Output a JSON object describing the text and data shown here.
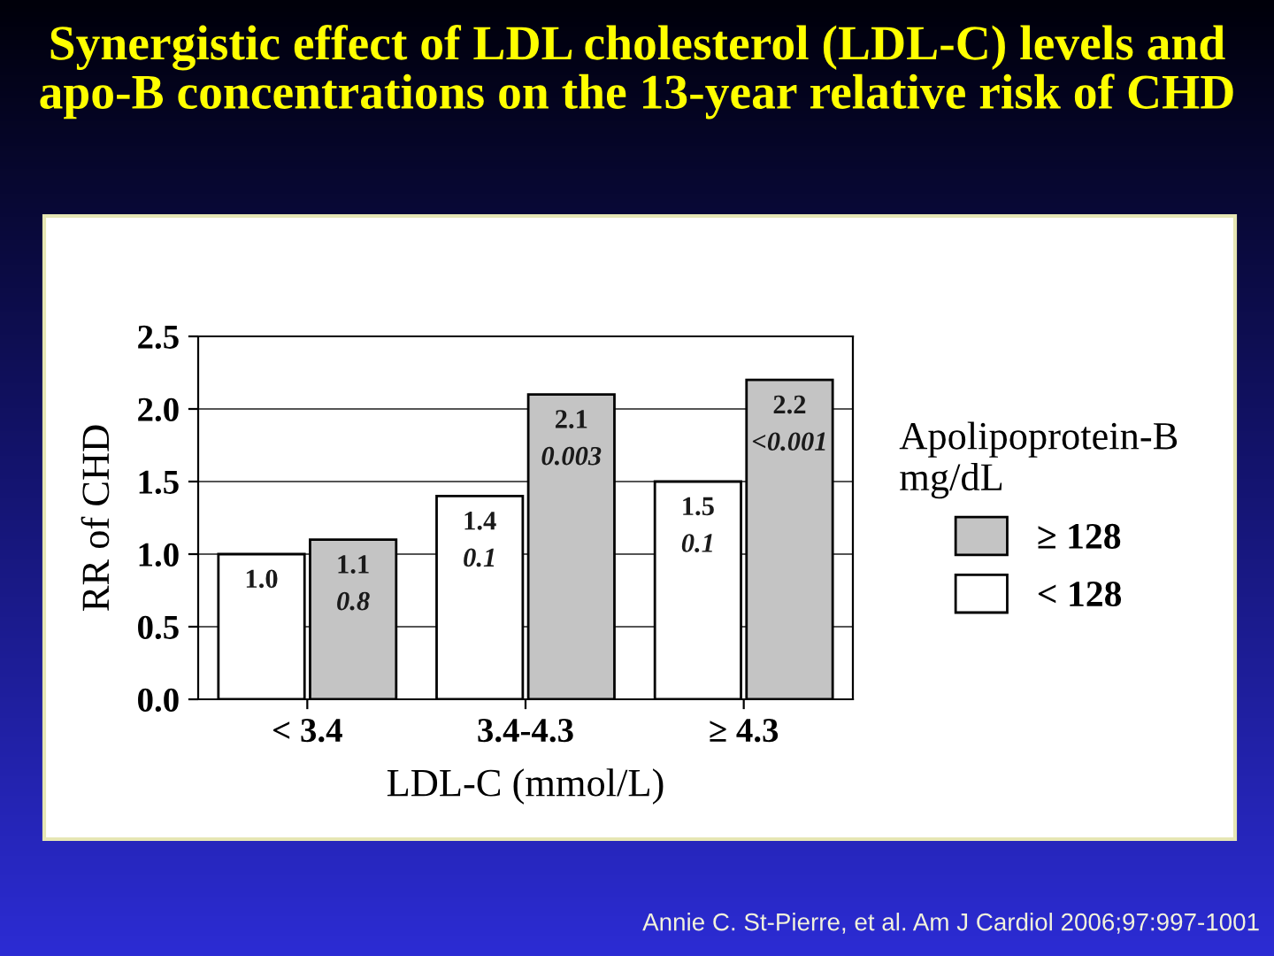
{
  "chart_data": {
    "type": "bar",
    "title": "Synergistic effect of LDL cholesterol (LDL-C) levels and apo-B concentrations on the 13-year relative risk of CHD",
    "xlabel": "LDL-C (mmol/L)",
    "ylabel": "RR of CHD",
    "legend_title": "Apolipoprotein-B\nmg/dL",
    "categories": [
      "< 3.4",
      "3.4-4.3",
      "≥ 4.3"
    ],
    "series": [
      {
        "name": "< 128",
        "color": "#ffffff",
        "values": [
          1.0,
          1.4,
          1.5
        ],
        "value_labels": [
          "1.0",
          "1.4\n0.1",
          "1.5\n0.1"
        ]
      },
      {
        "name": "≥ 128",
        "color": "#c4c4c4",
        "values": [
          1.1,
          2.1,
          2.2
        ],
        "value_labels": [
          "1.1\n0.8",
          "2.1\n0.003",
          "2.2\n<0.001"
        ]
      }
    ],
    "ylim": [
      0,
      2.5
    ],
    "yticks": [
      {
        "value": 0,
        "label": "0.0"
      },
      0.5,
      {
        "value": 1,
        "label": "1.0"
      },
      1.5,
      {
        "value": 2,
        "label": "2.0"
      },
      2.5
    ],
    "grid": "y",
    "legend": "right",
    "annotations": [
      "Annie C. St-Pierre, et al. Am J Cardiol 2006;97:997-1001"
    ]
  }
}
